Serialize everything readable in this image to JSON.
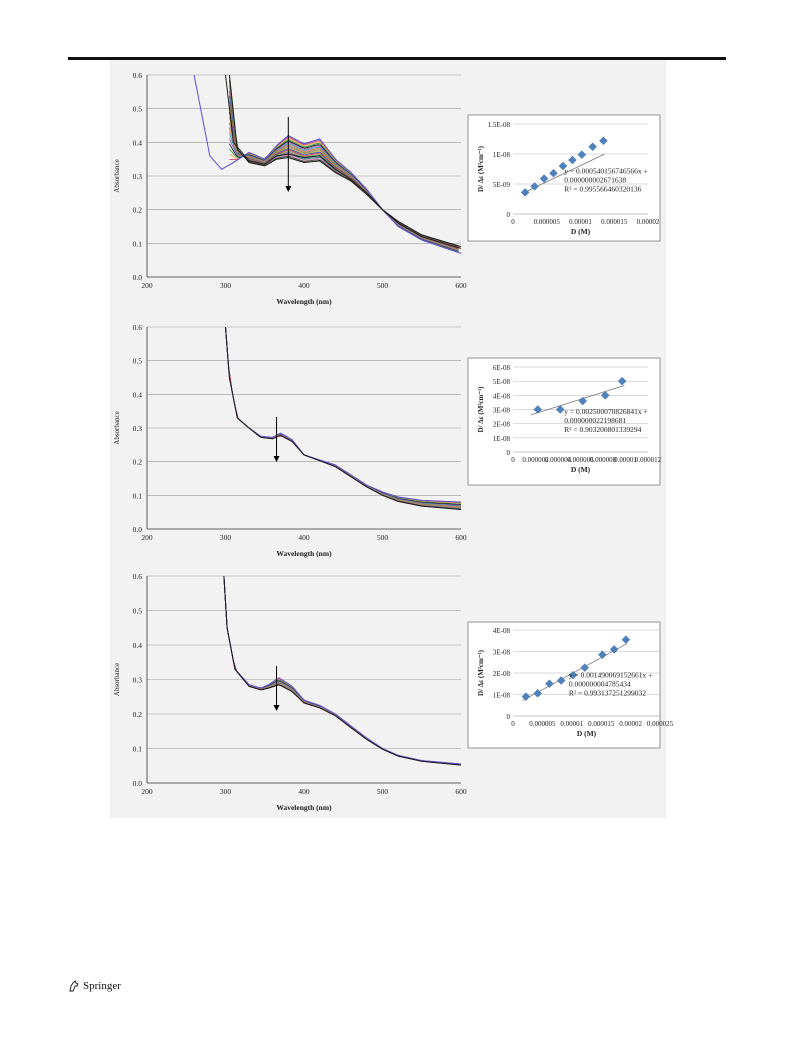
{
  "footer": {
    "publisher": "Springer"
  },
  "chart_data": [
    {
      "panel": "top",
      "type": "line",
      "xlabel": "Wavelength (nm)",
      "ylabel": "Absorbance",
      "xlim": [
        200,
        600
      ],
      "ylim": [
        0,
        0.6
      ],
      "xticks": [
        200,
        300,
        400,
        500,
        600
      ],
      "yticks": [
        0.0,
        0.1,
        0.2,
        0.3,
        0.4,
        0.5,
        0.6
      ],
      "arrow": "down",
      "arrow_at_x": 380,
      "series_count": 18,
      "series": [
        {
          "name": "",
          "values": [
            [
              260,
              0.6
            ],
            [
              280,
              0.36
            ],
            [
              295,
              0.32
            ],
            [
              310,
              0.34
            ],
            [
              330,
              0.37
            ],
            [
              350,
              0.35
            ],
            [
              365,
              0.39
            ],
            [
              380,
              0.42
            ],
            [
              400,
              0.395
            ],
            [
              420,
              0.41
            ],
            [
              440,
              0.35
            ],
            [
              460,
              0.31
            ],
            [
              480,
              0.26
            ],
            [
              500,
              0.2
            ],
            [
              520,
              0.15
            ],
            [
              550,
              0.11
            ],
            [
              600,
              0.07
            ]
          ]
        },
        {
          "name": "",
          "values": [
            [
              300,
              0.6
            ],
            [
              310,
              0.4
            ],
            [
              330,
              0.345
            ],
            [
              350,
              0.335
            ],
            [
              365,
              0.36
            ],
            [
              380,
              0.365
            ],
            [
              400,
              0.355
            ],
            [
              420,
              0.36
            ],
            [
              440,
              0.32
            ],
            [
              460,
              0.29
            ],
            [
              480,
              0.25
            ],
            [
              500,
              0.2
            ],
            [
              520,
              0.16
            ],
            [
              550,
              0.12
            ],
            [
              600,
              0.085
            ]
          ]
        },
        {
          "name": "",
          "values": [
            [
              305,
              0.6
            ],
            [
              315,
              0.38
            ],
            [
              330,
              0.34
            ],
            [
              350,
              0.33
            ],
            [
              365,
              0.35
            ],
            [
              380,
              0.355
            ],
            [
              400,
              0.34
            ],
            [
              420,
              0.345
            ],
            [
              440,
              0.31
            ],
            [
              460,
              0.285
            ],
            [
              480,
              0.245
            ],
            [
              500,
              0.2
            ],
            [
              520,
              0.165
            ],
            [
              550,
              0.125
            ],
            [
              600,
              0.09
            ]
          ]
        }
      ]
    },
    {
      "panel": "middle",
      "type": "line",
      "xlabel": "Wavelength (nm)",
      "ylabel": "Absorbance",
      "xlim": [
        200,
        600
      ],
      "ylim": [
        0,
        0.6
      ],
      "xticks": [
        200,
        300,
        400,
        500,
        600
      ],
      "yticks": [
        0.0,
        0.1,
        0.2,
        0.3,
        0.4,
        0.5,
        0.6
      ],
      "arrow": "down",
      "arrow_at_x": 365,
      "series": [
        {
          "name": "",
          "values": [
            [
              300,
              0.6
            ],
            [
              305,
              0.45
            ],
            [
              315,
              0.33
            ],
            [
              330,
              0.3
            ],
            [
              345,
              0.275
            ],
            [
              360,
              0.272
            ],
            [
              370,
              0.285
            ],
            [
              385,
              0.265
            ],
            [
              400,
              0.22
            ],
            [
              420,
              0.205
            ],
            [
              440,
              0.19
            ],
            [
              460,
              0.16
            ],
            [
              480,
              0.13
            ],
            [
              500,
              0.11
            ],
            [
              520,
              0.095
            ],
            [
              550,
              0.085
            ],
            [
              600,
              0.08
            ]
          ]
        },
        {
          "name": "",
          "values": [
            [
              300,
              0.6
            ],
            [
              305,
              0.45
            ],
            [
              315,
              0.33
            ],
            [
              330,
              0.3
            ],
            [
              345,
              0.272
            ],
            [
              360,
              0.268
            ],
            [
              370,
              0.278
            ],
            [
              385,
              0.26
            ],
            [
              400,
              0.22
            ],
            [
              420,
              0.203
            ],
            [
              440,
              0.185
            ],
            [
              460,
              0.155
            ],
            [
              480,
              0.125
            ],
            [
              500,
              0.1
            ],
            [
              520,
              0.082
            ],
            [
              550,
              0.068
            ],
            [
              600,
              0.058
            ]
          ]
        }
      ]
    },
    {
      "panel": "bottom",
      "type": "line",
      "xlabel": "Wavelength (nm)",
      "ylabel": "Absorbance",
      "xlim": [
        200,
        600
      ],
      "ylim": [
        0,
        0.6
      ],
      "xticks": [
        200,
        300,
        400,
        500,
        600
      ],
      "yticks": [
        0.0,
        0.1,
        0.2,
        0.3,
        0.4,
        0.5,
        0.6
      ],
      "arrow": "down",
      "arrow_at_x": 365,
      "series": [
        {
          "name": "",
          "values": [
            [
              298,
              0.6
            ],
            [
              302,
              0.45
            ],
            [
              312,
              0.33
            ],
            [
              330,
              0.285
            ],
            [
              345,
              0.275
            ],
            [
              355,
              0.285
            ],
            [
              368,
              0.305
            ],
            [
              385,
              0.28
            ],
            [
              400,
              0.24
            ],
            [
              420,
              0.225
            ],
            [
              440,
              0.2
            ],
            [
              460,
              0.165
            ],
            [
              480,
              0.13
            ],
            [
              500,
              0.1
            ],
            [
              520,
              0.08
            ],
            [
              550,
              0.065
            ],
            [
              600,
              0.055
            ]
          ]
        },
        {
          "name": "",
          "values": [
            [
              298,
              0.6
            ],
            [
              302,
              0.45
            ],
            [
              312,
              0.33
            ],
            [
              330,
              0.28
            ],
            [
              345,
              0.27
            ],
            [
              355,
              0.275
            ],
            [
              368,
              0.285
            ],
            [
              385,
              0.265
            ],
            [
              400,
              0.232
            ],
            [
              420,
              0.218
            ],
            [
              440,
              0.195
            ],
            [
              460,
              0.16
            ],
            [
              480,
              0.126
            ],
            [
              500,
              0.098
            ],
            [
              520,
              0.078
            ],
            [
              550,
              0.063
            ],
            [
              600,
              0.052
            ]
          ]
        }
      ]
    },
    {
      "panel": "inset-top",
      "type": "scatter",
      "xlabel": "D (M)",
      "ylabel": "D/ Δε (M²cm⁻¹)",
      "xlim": [
        0,
        2e-05
      ],
      "ylim": [
        0,
        1.5e-08
      ],
      "xtick_labels": [
        "0",
        "0.000005",
        "0.00001",
        "0.000015",
        "0.00002"
      ],
      "ytick_labels": [
        "0",
        "5E-09",
        "1E-08",
        "1.5E-08"
      ],
      "equation": "y = 0.000540156746566x +",
      "equation2": "0.000000002671638",
      "r_squared": "R² = 0.995566460320136",
      "slope": 0.000540156746566,
      "intercept": 2.671638e-09,
      "x": [
        1.8e-06,
        3.2e-06,
        4.6e-06,
        6e-06,
        7.4e-06,
        8.8e-06,
        1.02e-05,
        1.18e-05,
        1.34e-05
      ],
      "y": [
        3.6e-09,
        4.6e-09,
        5.9e-09,
        6.8e-09,
        8e-09,
        9e-09,
        9.9e-09,
        1.12e-08,
        1.22e-08
      ]
    },
    {
      "panel": "inset-middle",
      "type": "scatter",
      "xlabel": "D (M)",
      "ylabel": "D/ Δε (M²cm⁻¹)",
      "xlim": [
        0,
        1.2e-05
      ],
      "ylim": [
        0,
        6e-08
      ],
      "xtick_labels": [
        "0",
        "0.000002",
        "0.000004",
        "0.000006",
        "0.000008",
        "0.00001",
        "0.000012"
      ],
      "ytick_labels": [
        "0",
        "1E-08",
        "2E-08",
        "3E-08",
        "4E-08",
        "5E-08",
        "6E-08"
      ],
      "equation": "y = 0.002500070826841x +",
      "equation2": "0.000000022198681",
      "r_squared": "R² = 0.903200801339294",
      "slope": 0.002500070826841,
      "intercept": 2.2198681e-08,
      "x": [
        2.2e-06,
        4.2e-06,
        6.2e-06,
        8.2e-06,
        9.7e-06
      ],
      "y": [
        3e-08,
        3e-08,
        3.6e-08,
        4e-08,
        5e-08
      ]
    },
    {
      "panel": "inset-bottom",
      "type": "scatter",
      "xlabel": "D (M)",
      "ylabel": "D/ Δε (M²cm⁻¹)",
      "xlim": [
        0,
        2.5e-05
      ],
      "ylim": [
        0,
        4e-08
      ],
      "xtick_labels": [
        "0",
        "0.000005",
        "0.00001",
        "0.000015",
        "0.00002",
        "0.000025"
      ],
      "ytick_labels": [
        "0",
        "1E-08",
        "2E-08",
        "3E-08",
        "4E-08"
      ],
      "equation": "y = 0.001490069152661x +",
      "equation2": "0.000000004785434",
      "r_squared": "R² = 0.993137251299032",
      "slope": 0.001490069152661,
      "intercept": 4.785434e-09,
      "x": [
        2.2e-06,
        4.2e-06,
        6.2e-06,
        8.2e-06,
        1.02e-05,
        1.22e-05,
        1.52e-05,
        1.72e-05,
        1.92e-05
      ],
      "y": [
        9e-09,
        1.05e-08,
        1.5e-08,
        1.65e-08,
        1.9e-08,
        2.25e-08,
        2.85e-08,
        3.1e-08,
        3.55e-08
      ]
    }
  ]
}
